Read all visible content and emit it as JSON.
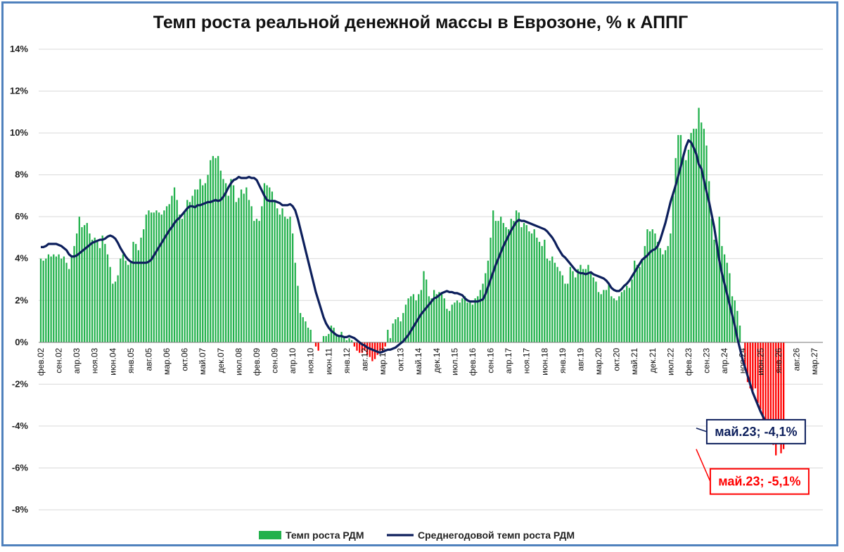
{
  "chart_data": {
    "type": "bar",
    "title": "Темп роста реальной денежной массы в Еврозоне, % к АППГ",
    "xlabel": "",
    "ylabel": "",
    "ylim": [
      -8,
      14
    ],
    "y_ticks": [
      "-8%",
      "-6%",
      "-4%",
      "-2%",
      "0%",
      "2%",
      "4%",
      "6%",
      "8%",
      "10%",
      "12%",
      "14%"
    ],
    "x_ticks": [
      "фев.02",
      "сен.02",
      "апр.03",
      "ноя.03",
      "июн.04",
      "янв.05",
      "авг.05",
      "мар.06",
      "окт.06",
      "май.07",
      "дек.07",
      "июл.08",
      "фев.09",
      "сен.09",
      "апр.10",
      "ноя.10",
      "июн.11",
      "янв.12",
      "авг.12",
      "мар.13",
      "окт.13",
      "май.14",
      "дек.14",
      "июл.15",
      "фев.16",
      "сен.16",
      "апр.17",
      "ноя.17",
      "июн.18",
      "янв.19",
      "авг.19",
      "мар.20",
      "окт.20",
      "май.21",
      "дек.21",
      "июл.22",
      "фев.23",
      "сен.23",
      "апр.24",
      "ноя.24",
      "июн.25",
      "янв.26",
      "авг.26",
      "мар.27"
    ],
    "x_range": [
      "фев.02",
      "мар.27"
    ],
    "grid": true,
    "legend_position": "bottom-center",
    "series": [
      {
        "name": "Темп роста РДМ",
        "kind": "bar",
        "positive_color": "#22b14c",
        "negative_color": "#ff0000",
        "start": "фев.02",
        "values": [
          4.0,
          3.9,
          4.0,
          4.2,
          4.1,
          4.2,
          4.1,
          4.2,
          4.0,
          4.1,
          3.8,
          3.5,
          4.1,
          4.6,
          5.2,
          6.0,
          5.5,
          5.6,
          5.7,
          5.2,
          4.9,
          5.0,
          4.8,
          4.5,
          5.1,
          4.7,
          4.2,
          3.6,
          2.8,
          2.9,
          3.2,
          4.0,
          4.2,
          3.9,
          3.7,
          3.8,
          4.8,
          4.7,
          4.4,
          5.0,
          5.4,
          6.1,
          6.3,
          6.2,
          6.2,
          6.3,
          6.2,
          6.1,
          6.3,
          6.5,
          6.6,
          7.0,
          7.4,
          6.8,
          6.1,
          5.9,
          6.2,
          6.8,
          6.7,
          7.0,
          7.3,
          7.3,
          7.8,
          7.5,
          7.6,
          8.0,
          8.7,
          8.9,
          8.8,
          8.9,
          8.2,
          7.8,
          7.6,
          7.0,
          7.8,
          7.5,
          6.7,
          6.9,
          7.3,
          7.1,
          7.4,
          6.8,
          6.5,
          5.8,
          5.9,
          5.8,
          6.5,
          7.6,
          7.5,
          7.4,
          7.2,
          6.8,
          6.4,
          6.1,
          6.4,
          6.0,
          5.9,
          6.0,
          5.2,
          3.8,
          2.7,
          1.4,
          1.2,
          1.0,
          0.7,
          0.6,
          0.0,
          -0.2,
          -0.4,
          0.0,
          0.3,
          0.3,
          0.4,
          0.8,
          0.7,
          0.4,
          0.3,
          0.5,
          0.2,
          0.1,
          0.2,
          0.1,
          -0.2,
          -0.4,
          -0.5,
          -0.5,
          -0.4,
          -0.6,
          -0.7,
          -0.9,
          -0.8,
          -0.6,
          -0.4,
          -0.4,
          -0.2,
          0.6,
          0.2,
          0.9,
          1.1,
          1.2,
          1.0,
          1.4,
          1.8,
          2.1,
          2.2,
          2.3,
          2.0,
          2.3,
          2.5,
          3.4,
          3.0,
          2.2,
          2.1,
          2.5,
          2.3,
          2.4,
          2.3,
          2.1,
          1.6,
          1.5,
          1.8,
          1.9,
          2.0,
          1.9,
          2.1,
          2.2,
          1.9,
          1.9,
          1.8,
          2.1,
          2.2,
          2.5,
          2.8,
          3.3,
          3.9,
          5.0,
          6.3,
          5.8,
          5.8,
          6.0,
          5.7,
          5.5,
          5.4,
          5.9,
          5.8,
          6.3,
          6.2,
          5.5,
          5.7,
          5.6,
          5.3,
          5.2,
          5.4,
          5.0,
          4.8,
          4.6,
          4.9,
          4.0,
          3.9,
          4.1,
          3.8,
          3.6,
          3.4,
          3.2,
          2.8,
          2.8,
          3.6,
          3.4,
          3.1,
          3.5,
          3.7,
          3.5,
          3.5,
          3.7,
          3.3,
          3.1,
          2.9,
          2.4,
          2.3,
          2.5,
          2.5,
          2.8,
          2.2,
          2.1,
          2.0,
          2.2,
          2.4,
          2.5,
          2.7,
          2.6,
          3.0,
          3.9,
          3.7,
          3.6,
          3.9,
          4.6,
          5.4,
          5.3,
          5.4,
          5.2,
          4.8,
          4.5,
          4.2,
          4.4,
          4.6,
          5.2,
          7.0,
          8.8,
          9.9,
          9.9,
          9.0,
          8.7,
          9.2,
          10.0,
          10.2,
          10.2,
          11.2,
          10.5,
          10.2,
          9.4,
          7.7,
          5.9,
          4.9,
          4.7,
          6.0,
          4.6,
          4.2,
          3.8,
          3.3,
          2.2,
          2.0,
          1.5,
          0.8,
          0.0,
          -1.2,
          -1.9,
          -2.2,
          -2.3,
          -2.2,
          -2.9,
          -3.2,
          -4.6,
          -4.6,
          -4.7,
          -4.4,
          -4.9,
          -5.4,
          -4.8,
          -5.3,
          -5.1
        ]
      },
      {
        "name": "Среднегодовой темп роста РДМ",
        "kind": "line",
        "color": "#0d1f5c",
        "start": "фев.02",
        "values": [
          4.55,
          4.55,
          4.6,
          4.7,
          4.7,
          4.7,
          4.7,
          4.65,
          4.6,
          4.5,
          4.4,
          4.2,
          4.1,
          4.1,
          4.15,
          4.25,
          4.35,
          4.45,
          4.55,
          4.65,
          4.75,
          4.8,
          4.85,
          4.9,
          4.9,
          4.95,
          5.05,
          5.1,
          5.05,
          4.95,
          4.75,
          4.5,
          4.3,
          4.1,
          3.95,
          3.85,
          3.8,
          3.8,
          3.8,
          3.8,
          3.8,
          3.8,
          3.85,
          3.95,
          4.15,
          4.35,
          4.55,
          4.75,
          4.95,
          5.15,
          5.35,
          5.5,
          5.7,
          5.85,
          5.95,
          6.1,
          6.25,
          6.4,
          6.5,
          6.5,
          6.45,
          6.55,
          6.55,
          6.6,
          6.65,
          6.7,
          6.7,
          6.75,
          6.8,
          6.75,
          6.8,
          6.95,
          7.15,
          7.4,
          7.6,
          7.75,
          7.8,
          7.9,
          7.85,
          7.85,
          7.85,
          7.9,
          7.85,
          7.85,
          7.75,
          7.5,
          7.25,
          7.0,
          6.8,
          6.75,
          6.75,
          6.75,
          6.7,
          6.65,
          6.55,
          6.55,
          6.55,
          6.6,
          6.5,
          6.3,
          5.9,
          5.4,
          4.9,
          4.4,
          3.9,
          3.4,
          2.9,
          2.4,
          2.0,
          1.6,
          1.2,
          0.9,
          0.7,
          0.55,
          0.45,
          0.35,
          0.3,
          0.3,
          0.25,
          0.25,
          0.3,
          0.25,
          0.2,
          0.1,
          0.0,
          -0.1,
          -0.15,
          -0.25,
          -0.3,
          -0.35,
          -0.4,
          -0.45,
          -0.5,
          -0.45,
          -0.4,
          -0.35,
          -0.35,
          -0.3,
          -0.25,
          -0.15,
          -0.05,
          0.05,
          0.2,
          0.35,
          0.55,
          0.75,
          0.95,
          1.15,
          1.35,
          1.5,
          1.65,
          1.8,
          1.95,
          2.1,
          2.15,
          2.25,
          2.35,
          2.4,
          2.45,
          2.4,
          2.4,
          2.35,
          2.35,
          2.3,
          2.25,
          2.1,
          2.0,
          1.95,
          1.95,
          1.95,
          1.95,
          2.0,
          2.05,
          2.3,
          2.65,
          3.0,
          3.35,
          3.7,
          4.0,
          4.3,
          4.6,
          4.85,
          5.1,
          5.35,
          5.55,
          5.75,
          5.85,
          5.8,
          5.8,
          5.75,
          5.7,
          5.65,
          5.6,
          5.55,
          5.5,
          5.45,
          5.4,
          5.3,
          5.15,
          5.0,
          4.8,
          4.55,
          4.35,
          4.15,
          4.05,
          3.9,
          3.75,
          3.6,
          3.45,
          3.35,
          3.3,
          3.3,
          3.25,
          3.3,
          3.35,
          3.25,
          3.2,
          3.15,
          3.1,
          3.05,
          2.95,
          2.8,
          2.6,
          2.5,
          2.45,
          2.45,
          2.55,
          2.7,
          2.8,
          2.95,
          3.15,
          3.35,
          3.55,
          3.75,
          3.95,
          4.05,
          4.15,
          4.3,
          4.4,
          4.45,
          4.6,
          4.9,
          5.3,
          5.7,
          6.2,
          6.7,
          7.1,
          7.5,
          7.95,
          8.4,
          8.9,
          9.35,
          9.65,
          9.55,
          9.3,
          9.0,
          8.5,
          8.3,
          7.75,
          7.2,
          6.7,
          6.1,
          5.5,
          4.7,
          3.9,
          3.3,
          2.8,
          2.3,
          1.8,
          1.3,
          0.8,
          0.2,
          -0.3,
          -0.8,
          -1.2,
          -1.6,
          -2.0,
          -2.4,
          -2.7,
          -3.0,
          -3.3,
          -3.55,
          -3.8,
          -4.0,
          -4.1
        ]
      }
    ],
    "annotations": [
      {
        "text": "май.23; -4,1%",
        "series": "Среднегодовой темп роста РДМ",
        "x": "май.23",
        "y": -4.1,
        "color": "#0d1f5c"
      },
      {
        "text": "май.23; -5,1%",
        "series": "Темп роста РДМ",
        "x": "май.23",
        "y": -5.1,
        "color": "#ff0000"
      }
    ],
    "legend": [
      {
        "label": "Темп роста РДМ",
        "swatch": "bar",
        "color": "#22b14c"
      },
      {
        "label": "Среднегодовой темп роста РДМ",
        "swatch": "line",
        "color": "#0d1f5c"
      }
    ]
  }
}
